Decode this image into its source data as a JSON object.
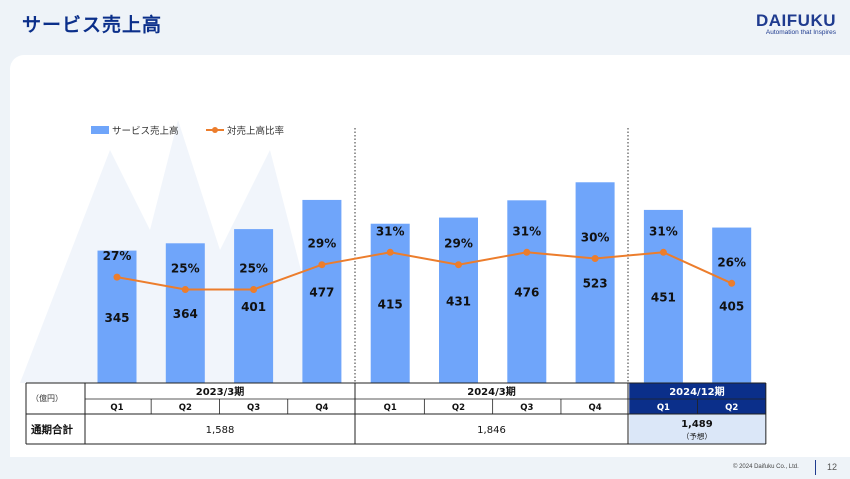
{
  "title": "サービス売上高",
  "logo": {
    "name": "DAIFUKU",
    "tagline": "Automation that Inspires"
  },
  "footer": {
    "copyright": "© 2024 Daifuku Co., Ltd.",
    "page": "12"
  },
  "colors": {
    "bar": "#6fa5fa",
    "line": "#ec7d2c",
    "title": "#0b2f8a",
    "header_highlight": "#0b2f8a",
    "highlight_cell": "#dbe7f8"
  },
  "chart_data": {
    "type": "bar",
    "legend": [
      "サービス売上高",
      "対売上高比率"
    ],
    "legend_position": "top-left",
    "categories": [
      "Q1",
      "Q2",
      "Q3",
      "Q4",
      "Q1",
      "Q2",
      "Q3",
      "Q4",
      "Q1",
      "Q2"
    ],
    "series": [
      {
        "name": "サービス売上高",
        "type": "bar",
        "values": [
          345,
          364,
          401,
          477,
          415,
          431,
          476,
          523,
          451,
          405
        ]
      },
      {
        "name": "対売上高比率",
        "type": "line",
        "values": [
          27,
          25,
          25,
          29,
          31,
          29,
          31,
          30,
          31,
          26
        ],
        "labels": [
          "27%",
          "25%",
          "25%",
          "29%",
          "31%",
          "29%",
          "31%",
          "30%",
          "31%",
          "26%"
        ]
      }
    ],
    "periods": [
      {
        "label": "2023/3期",
        "quarters": [
          "Q1",
          "Q2",
          "Q3",
          "Q4"
        ],
        "total": "1,588"
      },
      {
        "label": "2024/3期",
        "quarters": [
          "Q1",
          "Q2",
          "Q3",
          "Q4"
        ],
        "total": "1,846"
      },
      {
        "label": "2024/12期",
        "quarters": [
          "Q1",
          "Q2"
        ],
        "total": "1,489",
        "note": "（予想）",
        "highlight": true
      }
    ],
    "unit_label": "（億円）",
    "total_row_label": "通期合計"
  }
}
